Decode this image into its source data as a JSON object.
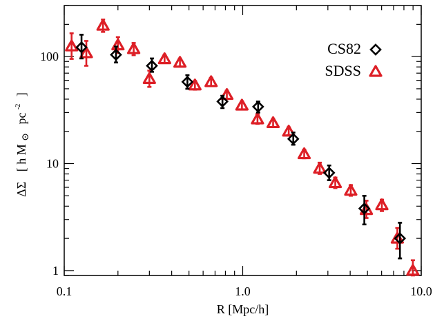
{
  "chart_data": {
    "type": "scatter",
    "xscale": "log",
    "yscale": "log",
    "xlim": [
      0.1,
      10.0
    ],
    "ylim": [
      0.9,
      300
    ],
    "xlabel": "R [Mpc/h]",
    "ylabel": "ΔΣ [ h M⊙ pc⁻² ]",
    "ylabel_parts": {
      "prefix": "ΔΣ",
      "open": "[ h M",
      "sun": "⊙",
      "pc": "pc",
      "exp": "-2",
      "close": "]"
    },
    "xticks": [
      {
        "value": 0.1,
        "label": "0.1"
      },
      {
        "value": 1.0,
        "label": "1.0"
      },
      {
        "value": 10.0,
        "label": "10.0"
      }
    ],
    "yticks": [
      {
        "value": 1,
        "label": "1"
      },
      {
        "value": 10,
        "label": "10"
      },
      {
        "value": 100,
        "label": "100"
      }
    ],
    "legend_position": "top-right",
    "series": [
      {
        "name": "CS82",
        "marker": "diamond",
        "color": "#000000",
        "points": [
          {
            "x": 0.125,
            "y": 122,
            "lo": 96,
            "hi": 160
          },
          {
            "x": 0.195,
            "y": 104,
            "lo": 88,
            "hi": 124
          },
          {
            "x": 0.31,
            "y": 82,
            "lo": 72,
            "hi": 96
          },
          {
            "x": 0.49,
            "y": 58,
            "lo": 50,
            "hi": 67
          },
          {
            "x": 0.77,
            "y": 38,
            "lo": 33,
            "hi": 43
          },
          {
            "x": 1.22,
            "y": 34,
            "lo": 30,
            "hi": 38
          },
          {
            "x": 1.92,
            "y": 17,
            "lo": 15,
            "hi": 19.5
          },
          {
            "x": 3.05,
            "y": 8.2,
            "lo": 7.0,
            "hi": 9.6
          },
          {
            "x": 4.8,
            "y": 3.8,
            "lo": 2.7,
            "hi": 5.0
          },
          {
            "x": 7.6,
            "y": 2.0,
            "lo": 1.3,
            "hi": 2.8
          }
        ]
      },
      {
        "name": "SDSS",
        "marker": "triangle",
        "color": "#dd1f26",
        "points": [
          {
            "x": 0.11,
            "y": 125,
            "lo": 95,
            "hi": 165
          },
          {
            "x": 0.133,
            "y": 108,
            "lo": 82,
            "hi": 140
          },
          {
            "x": 0.165,
            "y": 195,
            "lo": 170,
            "hi": 222
          },
          {
            "x": 0.2,
            "y": 128,
            "lo": 108,
            "hi": 152
          },
          {
            "x": 0.245,
            "y": 118,
            "lo": 103,
            "hi": 134
          },
          {
            "x": 0.3,
            "y": 62,
            "lo": 52,
            "hi": 74
          },
          {
            "x": 0.365,
            "y": 95,
            "lo": 87,
            "hi": 103
          },
          {
            "x": 0.445,
            "y": 88,
            "lo": 81,
            "hi": 95
          },
          {
            "x": 0.54,
            "y": 54,
            "lo": 49,
            "hi": 59
          },
          {
            "x": 0.665,
            "y": 58,
            "lo": 53,
            "hi": 63
          },
          {
            "x": 0.815,
            "y": 44,
            "lo": 40,
            "hi": 48
          },
          {
            "x": 0.99,
            "y": 35,
            "lo": 32,
            "hi": 38
          },
          {
            "x": 1.21,
            "y": 26,
            "lo": 23.5,
            "hi": 29
          },
          {
            "x": 1.48,
            "y": 24,
            "lo": 22,
            "hi": 26
          },
          {
            "x": 1.81,
            "y": 20,
            "lo": 18.5,
            "hi": 21.8
          },
          {
            "x": 2.21,
            "y": 12.3,
            "lo": 11.2,
            "hi": 13.5
          },
          {
            "x": 2.7,
            "y": 9.0,
            "lo": 8.0,
            "hi": 10.2
          },
          {
            "x": 3.3,
            "y": 6.6,
            "lo": 5.9,
            "hi": 7.4
          },
          {
            "x": 4.03,
            "y": 5.6,
            "lo": 5.0,
            "hi": 6.3
          },
          {
            "x": 4.93,
            "y": 3.7,
            "lo": 3.1,
            "hi": 4.5
          },
          {
            "x": 6.02,
            "y": 4.1,
            "lo": 3.6,
            "hi": 4.6
          },
          {
            "x": 7.35,
            "y": 2.0,
            "lo": 1.6,
            "hi": 2.5
          },
          {
            "x": 8.98,
            "y": 1.0,
            "lo": 0.9,
            "hi": 1.25
          }
        ]
      }
    ]
  }
}
